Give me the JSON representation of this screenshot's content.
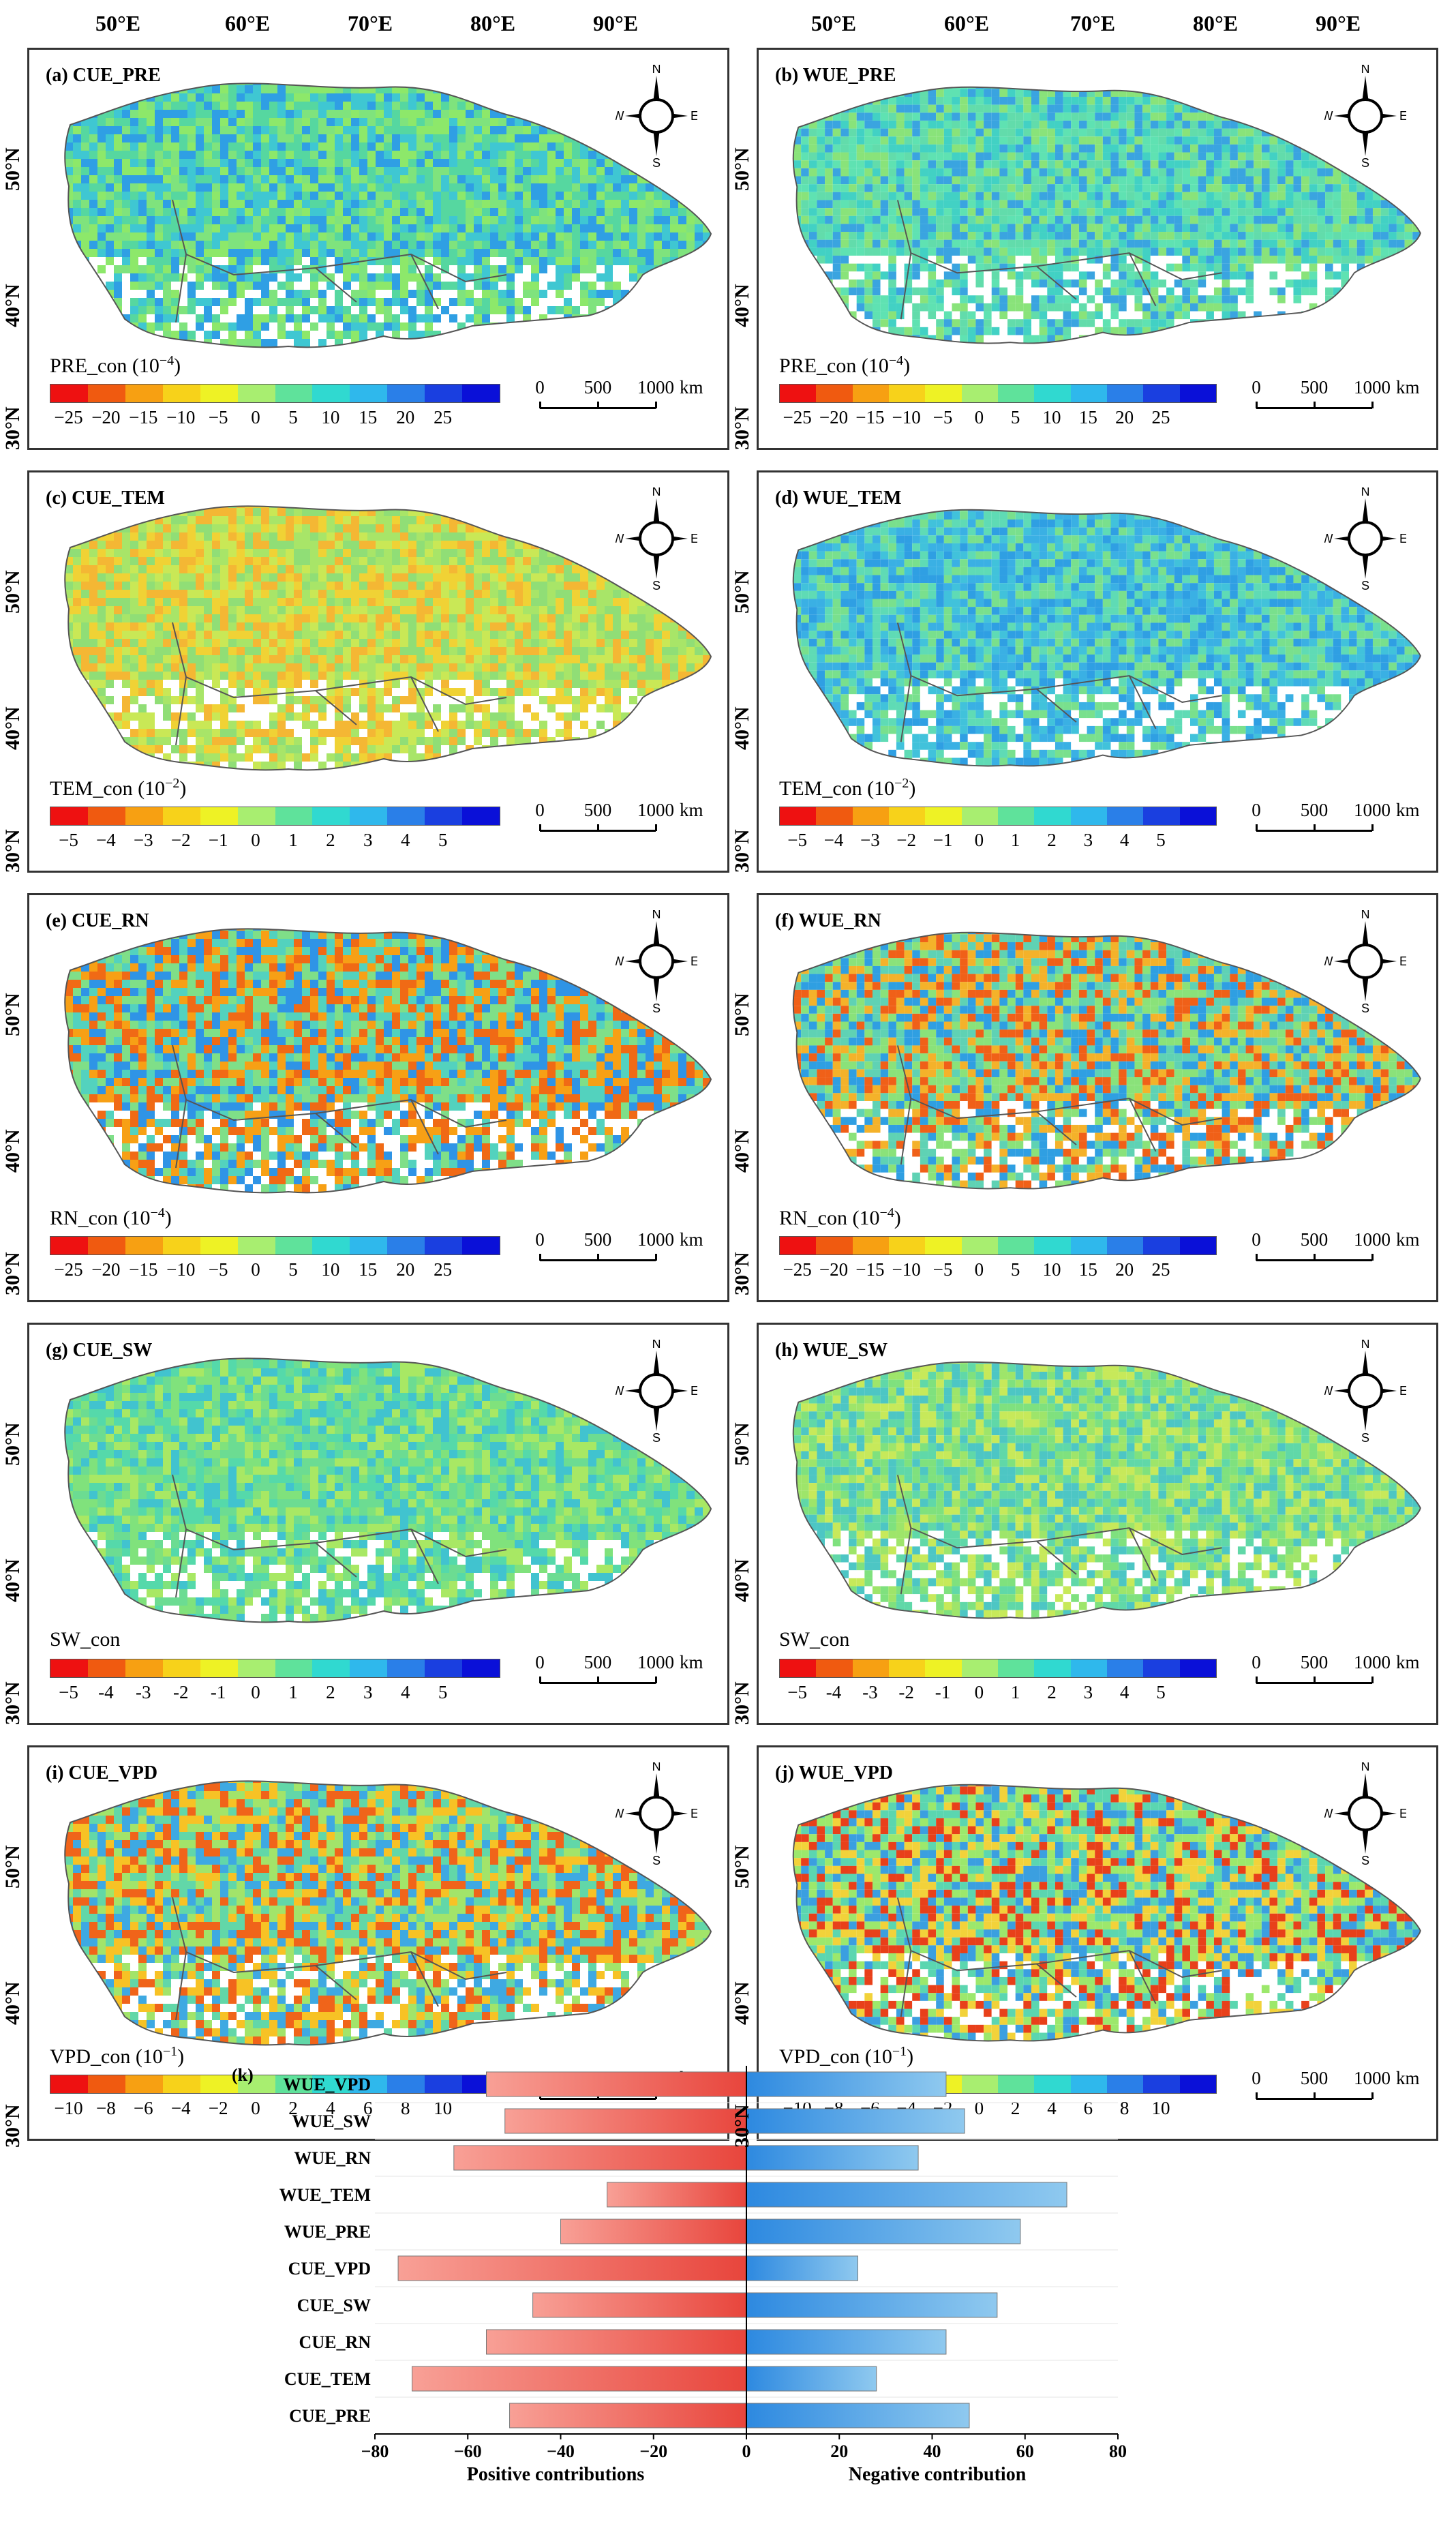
{
  "top_axis": {
    "left_lon": [
      "50°E",
      "60°E",
      "70°E",
      "80°E",
      "90°E"
    ],
    "right_lon": [
      "50°E",
      "60°E",
      "70°E",
      "80°E",
      "90°E"
    ]
  },
  "lat_labels": [
    "50°N",
    "40°N",
    "30°N"
  ],
  "compass": {
    "n": "N",
    "s": "S",
    "e": "E",
    "w": "W"
  },
  "scale_bar": {
    "labels": [
      "0",
      "500",
      "1000"
    ],
    "unit": "km"
  },
  "panels": [
    {
      "id": "a",
      "title": "(a) CUE_PRE",
      "var": "PRE_con",
      "exp": "-4",
      "ticks": [
        "−25",
        "−20",
        "−15",
        "−10",
        "−5",
        "0",
        "5",
        "10",
        "15",
        "20",
        "25"
      ],
      "scheme": "pre_cue"
    },
    {
      "id": "b",
      "title": "(b) WUE_PRE",
      "var": "PRE_con",
      "exp": "-4",
      "ticks": [
        "−25",
        "−20",
        "−15",
        "−10",
        "−5",
        "0",
        "5",
        "10",
        "15",
        "20",
        "25"
      ],
      "scheme": "pre_wue"
    },
    {
      "id": "c",
      "title": "(c) CUE_TEM",
      "var": "TEM_con",
      "exp": "-2",
      "ticks": [
        "−5",
        "−4",
        "−3",
        "−2",
        "−1",
        "0",
        "1",
        "2",
        "3",
        "4",
        "5"
      ],
      "scheme": "tem_cue"
    },
    {
      "id": "d",
      "title": "(d) WUE_TEM",
      "var": "TEM_con",
      "exp": "-2",
      "ticks": [
        "−5",
        "−4",
        "−3",
        "−2",
        "−1",
        "0",
        "1",
        "2",
        "3",
        "4",
        "5"
      ],
      "scheme": "tem_wue"
    },
    {
      "id": "e",
      "title": "(e) CUE_RN",
      "var": "RN_con",
      "exp": "-4",
      "ticks": [
        "−25",
        "−20",
        "−15",
        "−10",
        "−5",
        "0",
        "5",
        "10",
        "15",
        "20",
        "25"
      ],
      "scheme": "rn_cue"
    },
    {
      "id": "f",
      "title": "(f) WUE_RN",
      "var": "RN_con",
      "exp": "-4",
      "ticks": [
        "−25",
        "−20",
        "−15",
        "−10",
        "−5",
        "0",
        "5",
        "10",
        "15",
        "20",
        "25"
      ],
      "scheme": "rn_wue"
    },
    {
      "id": "g",
      "title": "(g) CUE_SW",
      "var": "SW_con",
      "exp": "",
      "ticks": [
        "−5",
        "-4",
        "-3",
        "-2",
        "-1",
        "0",
        "1",
        "2",
        "3",
        "4",
        "5"
      ],
      "scheme": "sw_cue"
    },
    {
      "id": "h",
      "title": "(h) WUE_SW",
      "var": "SW_con",
      "exp": "",
      "ticks": [
        "−5",
        "-4",
        "-3",
        "-2",
        "-1",
        "0",
        "1",
        "2",
        "3",
        "4",
        "5"
      ],
      "scheme": "sw_wue"
    },
    {
      "id": "i",
      "title": "(i) CUE_VPD",
      "var": "VPD_con",
      "exp": "-1",
      "ticks": [
        "−10",
        "−8",
        "−6",
        "−4",
        "−2",
        "0",
        "2",
        "4",
        "6",
        "8",
        "10"
      ],
      "scheme": "vpd_cue"
    },
    {
      "id": "j",
      "title": "(j) WUE_VPD",
      "var": "VPD_con",
      "exp": "-1",
      "ticks": [
        "−10",
        "−8",
        "−6",
        "−4",
        "−2",
        "0",
        "2",
        "4",
        "6",
        "8",
        "10"
      ],
      "scheme": "vpd_wue"
    }
  ],
  "colorbar_colors": [
    "#ee1111",
    "#f05a10",
    "#f7a012",
    "#f7d21a",
    "#eef225",
    "#a8ee70",
    "#5fe29b",
    "#30d9d0",
    "#2fb8ec",
    "#2a7fe8",
    "#1a3fe0",
    "#0a10d8"
  ],
  "chart_data": {
    "type": "bar",
    "panel_title": "(k)",
    "categories": [
      "WUE_VPD",
      "WUE_SW",
      "WUE_RN",
      "WUE_TEM",
      "WUE_PRE",
      "CUE_VPD",
      "CUE_SW",
      "CUE_RN",
      "CUE_TEM",
      "CUE_PRE"
    ],
    "series": [
      {
        "name": "Positive contributions",
        "values": [
          -56,
          -52,
          -63,
          -30,
          -40,
          -75,
          -46,
          -56,
          -72,
          -51
        ]
      },
      {
        "name": "Negative contribution",
        "values": [
          43,
          47,
          37,
          69,
          59,
          24,
          54,
          43,
          28,
          48
        ]
      }
    ],
    "xlim": [
      -80,
      80
    ],
    "xticks": [
      "−80",
      "−60",
      "−40",
      "−20",
      "0",
      "20",
      "40",
      "60",
      "80"
    ],
    "xlabel_left": "Positive contributions",
    "xlabel_right": "Negative contribution",
    "colors": {
      "negative_side": "#e8453c",
      "positive_side": "#2d89e0"
    }
  }
}
